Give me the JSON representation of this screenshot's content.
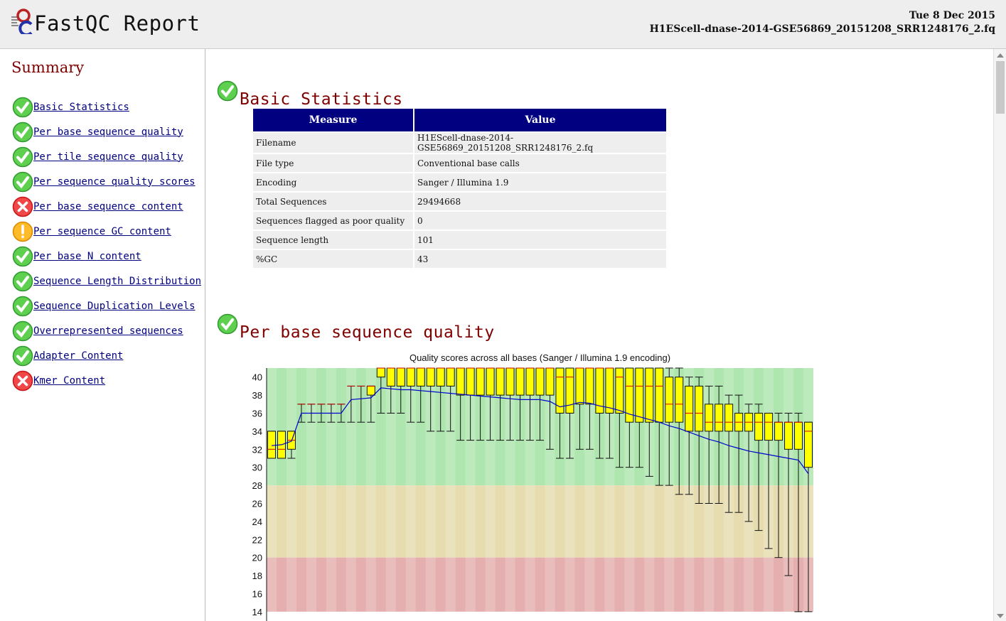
{
  "header": {
    "title": "FastQC Report",
    "date": "Tue 8 Dec 2015",
    "filename": "H1EScell-dnase-2014-GSE56869_20151208_SRR1248176_2.fq"
  },
  "sidebar": {
    "title": "Summary",
    "items": [
      {
        "label": "Basic Statistics",
        "status": "pass"
      },
      {
        "label": "Per base sequence quality",
        "status": "pass"
      },
      {
        "label": "Per tile sequence quality",
        "status": "pass"
      },
      {
        "label": "Per sequence quality scores",
        "status": "pass"
      },
      {
        "label": "Per base sequence content",
        "status": "fail"
      },
      {
        "label": "Per sequence GC content",
        "status": "warn"
      },
      {
        "label": "Per base N content",
        "status": "pass"
      },
      {
        "label": "Sequence Length Distribution",
        "status": "pass"
      },
      {
        "label": "Sequence Duplication Levels",
        "status": "pass"
      },
      {
        "label": "Overrepresented sequences",
        "status": "pass"
      },
      {
        "label": "Adapter Content",
        "status": "pass"
      },
      {
        "label": "Kmer Content",
        "status": "fail"
      }
    ]
  },
  "basic_statistics": {
    "heading": "Basic Statistics",
    "status": "pass",
    "columns": [
      "Measure",
      "Value"
    ],
    "rows": [
      [
        "Filename",
        "H1EScell-dnase-2014-GSE56869_20151208_SRR1248176_2.fq"
      ],
      [
        "File type",
        "Conventional base calls"
      ],
      [
        "Encoding",
        "Sanger / Illumina 1.9"
      ],
      [
        "Total Sequences",
        "29494668"
      ],
      [
        "Sequences flagged as poor quality",
        "0"
      ],
      [
        "Sequence length",
        "101"
      ],
      [
        "%GC",
        "43"
      ]
    ]
  },
  "per_base_quality": {
    "heading": "Per base sequence quality",
    "status": "pass"
  },
  "colors": {
    "heading": "#800000",
    "table_header": "#000080",
    "link": "#000080",
    "box_fill": "#ffff00",
    "mean_line": "#0000cc",
    "median": "#cc0000",
    "zone_good": "#afe6af",
    "zone_warn": "#e6dcaf",
    "zone_bad": "#e6afaf"
  },
  "chart_data": {
    "type": "boxplot",
    "title": "Quality scores across all bases (Sanger / Illumina 1.9 encoding)",
    "ylim": [
      14,
      41
    ],
    "yticks": [
      14,
      16,
      18,
      20,
      22,
      24,
      26,
      28,
      30,
      32,
      34,
      36,
      38,
      40
    ],
    "zones": [
      {
        "from": 28,
        "to": 41,
        "label": "good"
      },
      {
        "from": 20,
        "to": 28,
        "label": "warn"
      },
      {
        "from": 14,
        "to": 20,
        "label": "bad"
      }
    ],
    "boxes": [
      {
        "median": 32,
        "q1": 31,
        "q3": 34,
        "low": 31,
        "high": 34
      },
      {
        "median": 32,
        "q1": 31,
        "q3": 34,
        "low": 31,
        "high": 34
      },
      {
        "median": 33,
        "q1": 32,
        "q3": 34,
        "low": 31,
        "high": 34
      },
      {
        "median": 37,
        "q1": 37,
        "q3": 37,
        "low": 35,
        "high": 37
      },
      {
        "median": 37,
        "q1": 37,
        "q3": 37,
        "low": 35,
        "high": 37
      },
      {
        "median": 37,
        "q1": 37,
        "q3": 37,
        "low": 35,
        "high": 37
      },
      {
        "median": 37,
        "q1": 37,
        "q3": 37,
        "low": 35,
        "high": 37
      },
      {
        "median": 37,
        "q1": 37,
        "q3": 37,
        "low": 35,
        "high": 37
      },
      {
        "median": 39,
        "q1": 39,
        "q3": 39,
        "low": 35,
        "high": 39
      },
      {
        "median": 39,
        "q1": 39,
        "q3": 39,
        "low": 35,
        "high": 39
      },
      {
        "median": 39,
        "q1": 38,
        "q3": 39,
        "low": 35,
        "high": 39
      },
      {
        "median": 41,
        "q1": 40,
        "q3": 41,
        "low": 36,
        "high": 41
      },
      {
        "median": 41,
        "q1": 39,
        "q3": 41,
        "low": 36,
        "high": 41
      },
      {
        "median": 41,
        "q1": 39,
        "q3": 41,
        "low": 36,
        "high": 41
      },
      {
        "median": 41,
        "q1": 39,
        "q3": 41,
        "low": 35,
        "high": 41
      },
      {
        "median": 41,
        "q1": 39,
        "q3": 41,
        "low": 35,
        "high": 41
      },
      {
        "median": 41,
        "q1": 39,
        "q3": 41,
        "low": 34,
        "high": 41
      },
      {
        "median": 41,
        "q1": 39,
        "q3": 41,
        "low": 34,
        "high": 41
      },
      {
        "median": 41,
        "q1": 39,
        "q3": 41,
        "low": 34,
        "high": 41
      },
      {
        "median": 41,
        "q1": 38,
        "q3": 41,
        "low": 33,
        "high": 41
      },
      {
        "median": 41,
        "q1": 38,
        "q3": 41,
        "low": 33,
        "high": 41
      },
      {
        "median": 41,
        "q1": 38,
        "q3": 41,
        "low": 33,
        "high": 41
      },
      {
        "median": 41,
        "q1": 38,
        "q3": 41,
        "low": 33,
        "high": 41
      },
      {
        "median": 41,
        "q1": 38,
        "q3": 41,
        "low": 33,
        "high": 41
      },
      {
        "median": 41,
        "q1": 38,
        "q3": 41,
        "low": 33,
        "high": 41
      },
      {
        "median": 41,
        "q1": 38,
        "q3": 41,
        "low": 33,
        "high": 41
      },
      {
        "median": 41,
        "q1": 38,
        "q3": 41,
        "low": 33,
        "high": 41
      },
      {
        "median": 41,
        "q1": 38,
        "q3": 41,
        "low": 33,
        "high": 41
      },
      {
        "median": 41,
        "q1": 38,
        "q3": 41,
        "low": 32,
        "high": 41
      },
      {
        "median": 40,
        "q1": 36,
        "q3": 41,
        "low": 31,
        "high": 41
      },
      {
        "median": 40,
        "q1": 36,
        "q3": 41,
        "low": 31,
        "high": 41
      },
      {
        "median": 41,
        "q1": 37,
        "q3": 41,
        "low": 32,
        "high": 41
      },
      {
        "median": 41,
        "q1": 37,
        "q3": 41,
        "low": 32,
        "high": 41
      },
      {
        "median": 41,
        "q1": 36,
        "q3": 41,
        "low": 31,
        "high": 41
      },
      {
        "median": 41,
        "q1": 36,
        "q3": 41,
        "low": 31,
        "high": 41
      },
      {
        "median": 40,
        "q1": 36,
        "q3": 41,
        "low": 30,
        "high": 41
      },
      {
        "median": 39,
        "q1": 35,
        "q3": 41,
        "low": 30,
        "high": 41
      },
      {
        "median": 39,
        "q1": 35,
        "q3": 41,
        "low": 30,
        "high": 41
      },
      {
        "median": 39,
        "q1": 35,
        "q3": 41,
        "low": 29,
        "high": 41
      },
      {
        "median": 39,
        "q1": 35,
        "q3": 41,
        "low": 28,
        "high": 41
      },
      {
        "median": 37,
        "q1": 35,
        "q3": 40,
        "low": 28,
        "high": 41
      },
      {
        "median": 37,
        "q1": 35,
        "q3": 40,
        "low": 27,
        "high": 41
      },
      {
        "median": 36,
        "q1": 34,
        "q3": 39,
        "low": 27,
        "high": 40
      },
      {
        "median": 36,
        "q1": 34,
        "q3": 39,
        "low": 26,
        "high": 40
      },
      {
        "median": 35,
        "q1": 34,
        "q3": 37,
        "low": 26,
        "high": 39
      },
      {
        "median": 35,
        "q1": 34,
        "q3": 37,
        "low": 26,
        "high": 39
      },
      {
        "median": 35,
        "q1": 34,
        "q3": 37,
        "low": 25,
        "high": 38
      },
      {
        "median": 35,
        "q1": 34,
        "q3": 36,
        "low": 25,
        "high": 38
      },
      {
        "median": 35,
        "q1": 34,
        "q3": 36,
        "low": 24,
        "high": 37
      },
      {
        "median": 35,
        "q1": 33,
        "q3": 36,
        "low": 23,
        "high": 37
      },
      {
        "median": 35,
        "q1": 33,
        "q3": 36,
        "low": 21,
        "high": 36
      },
      {
        "median": 35,
        "q1": 33,
        "q3": 35,
        "low": 20,
        "high": 36
      },
      {
        "median": 35,
        "q1": 32,
        "q3": 35,
        "low": 18,
        "high": 36
      },
      {
        "median": 35,
        "q1": 32,
        "q3": 35,
        "low": 14,
        "high": 36
      },
      {
        "median": 34,
        "q1": 30,
        "q3": 35,
        "low": 14,
        "high": 35
      }
    ],
    "mean": [
      32.4,
      32.5,
      32.9,
      36.0,
      36.0,
      36.0,
      36.0,
      36.0,
      37.5,
      37.6,
      37.7,
      38.8,
      38.7,
      38.6,
      38.6,
      38.5,
      38.4,
      38.3,
      38.2,
      38.1,
      38.0,
      37.9,
      37.8,
      37.7,
      37.6,
      37.5,
      37.5,
      37.5,
      37.3,
      36.7,
      36.9,
      37.2,
      37.1,
      36.8,
      36.6,
      36.3,
      35.9,
      35.6,
      35.3,
      35.0,
      34.6,
      34.3,
      33.9,
      33.5,
      33.1,
      32.8,
      32.4,
      32.1,
      31.8,
      31.6,
      31.4,
      31.2,
      31.0,
      30.8,
      29.3
    ]
  }
}
